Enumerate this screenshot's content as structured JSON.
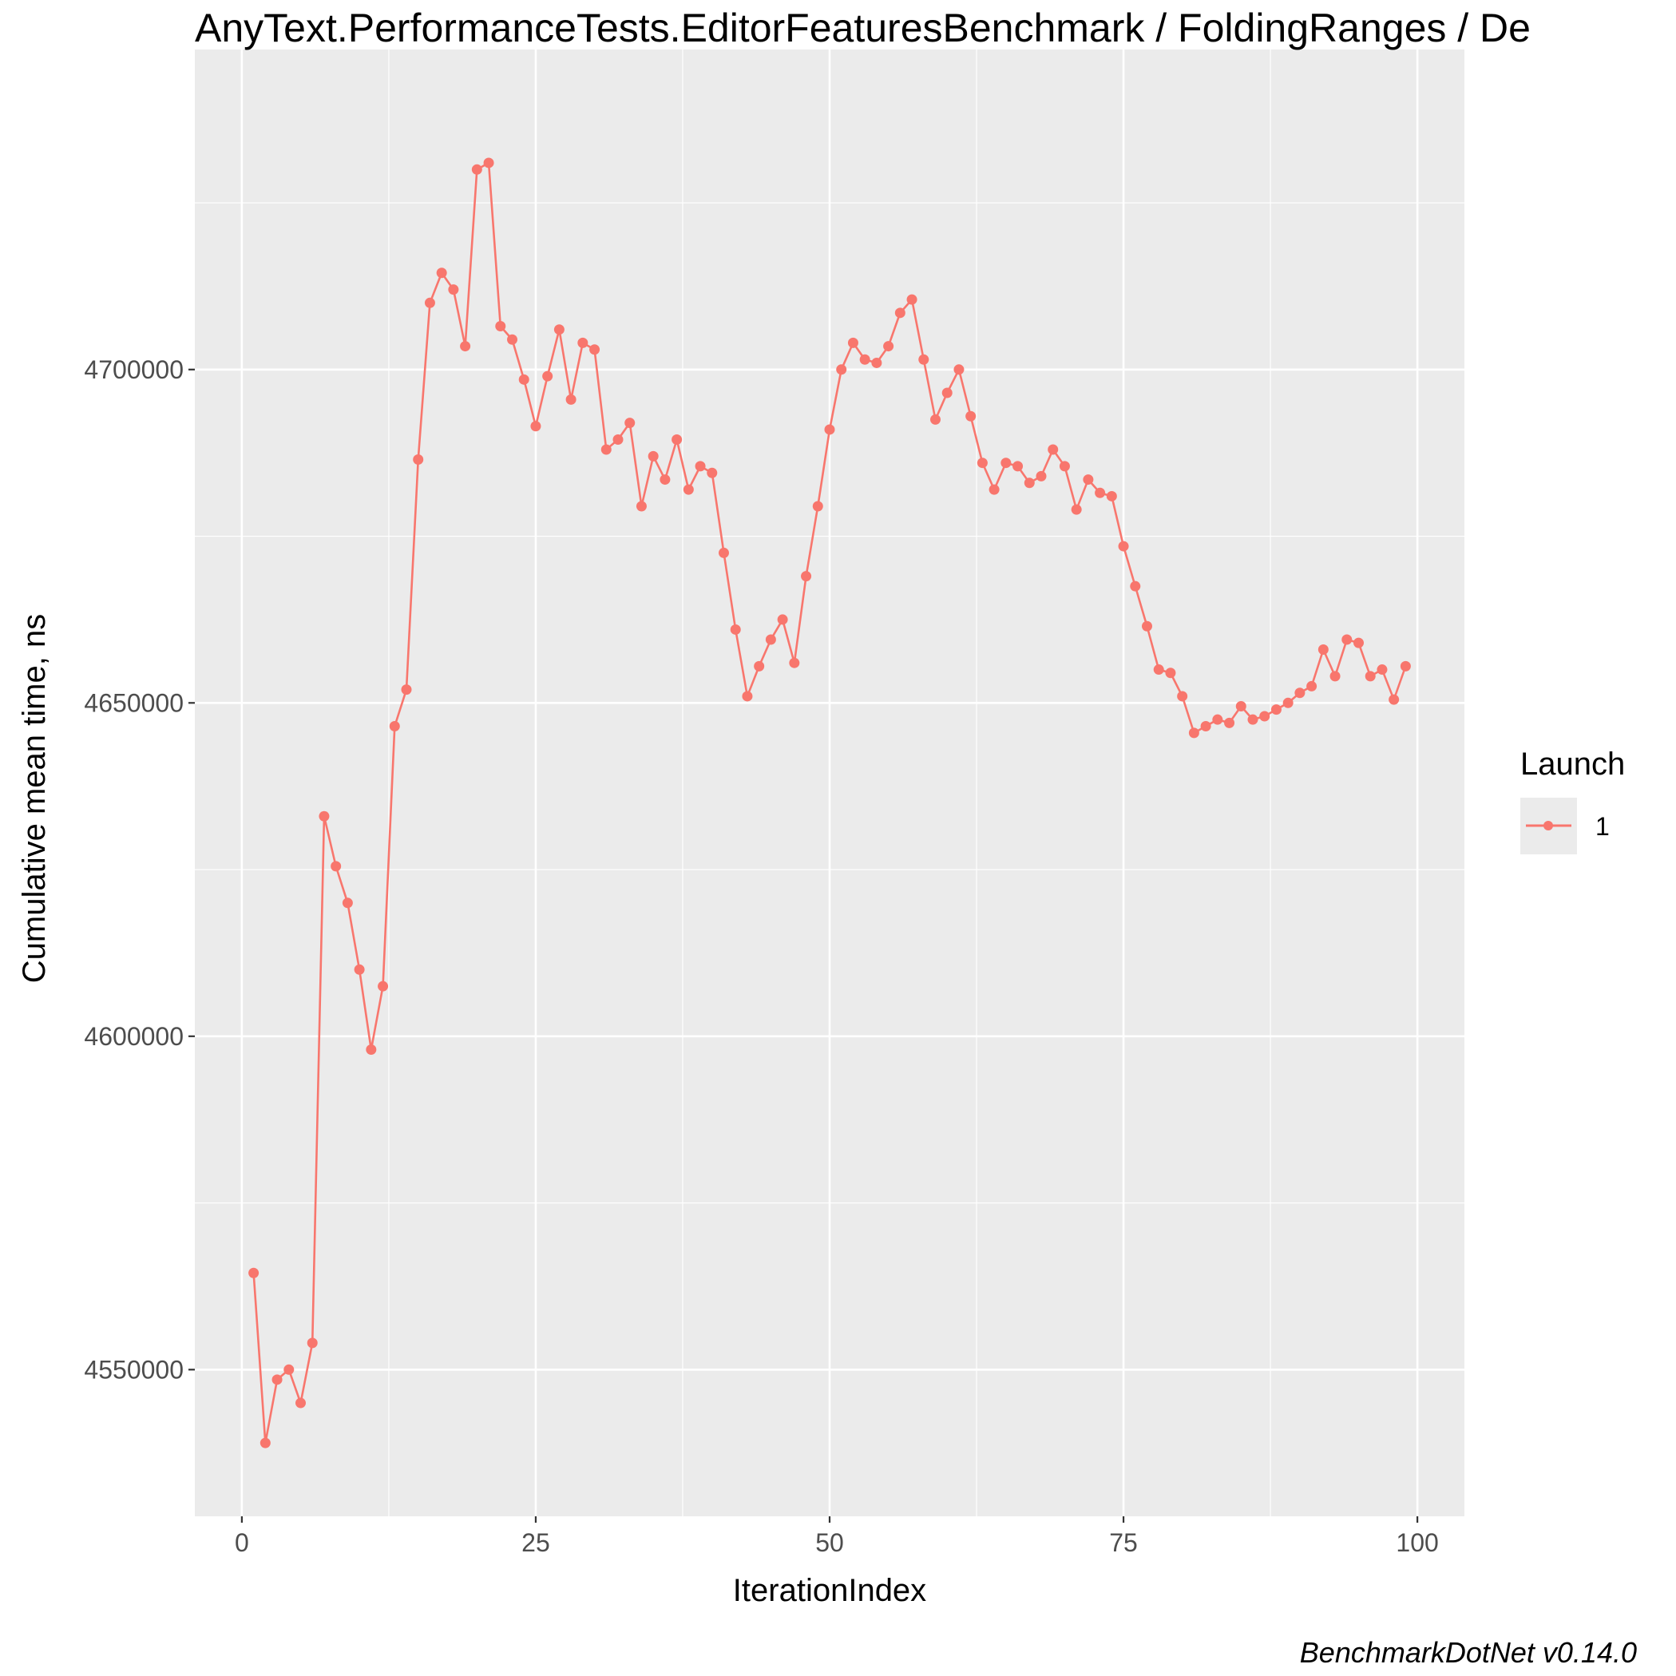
{
  "chart_data": {
    "type": "line",
    "title": "AnyText.PerformanceTests.EditorFeaturesBenchmark / FoldingRanges / De",
    "xlabel": "IterationIndex",
    "ylabel": "Cumulative mean time, ns",
    "caption": "BenchmarkDotNet v0.14.0",
    "xlim": [
      -4,
      104
    ],
    "ylim": [
      4528000,
      4748000
    ],
    "x_ticks": [
      0,
      25,
      50,
      75,
      100
    ],
    "x_tick_labels": [
      "0",
      "25",
      "50",
      "75",
      "100"
    ],
    "y_ticks": [
      4550000,
      4600000,
      4650000,
      4700000
    ],
    "y_tick_labels": [
      "4550000",
      "4600000",
      "4650000",
      "4700000"
    ],
    "y_minor_ticks": [
      4575000,
      4625000,
      4675000,
      4725000
    ],
    "grid": true,
    "legend": {
      "title": "Launch",
      "position": "right",
      "entries": [
        {
          "label": "1",
          "color": "#F8766D"
        }
      ]
    },
    "series": [
      {
        "name": "1",
        "color": "#F8766D",
        "x": [
          1,
          2,
          3,
          4,
          5,
          6,
          7,
          8,
          9,
          10,
          11,
          12,
          13,
          14,
          15,
          16,
          17,
          18,
          19,
          20,
          21,
          22,
          23,
          24,
          25,
          26,
          27,
          28,
          29,
          30,
          31,
          32,
          33,
          34,
          35,
          36,
          37,
          38,
          39,
          40,
          41,
          42,
          43,
          44,
          45,
          46,
          47,
          48,
          49,
          50,
          51,
          52,
          53,
          54,
          55,
          56,
          57,
          58,
          59,
          60,
          61,
          62,
          63,
          64,
          65,
          66,
          67,
          68,
          69,
          70,
          71,
          72,
          73,
          74,
          75,
          76,
          77,
          78,
          79,
          80,
          81,
          82,
          83,
          84,
          85,
          86,
          87,
          88,
          89,
          90,
          91,
          92,
          93,
          94,
          95,
          96,
          97,
          98,
          99
        ],
        "values": [
          4564500,
          4539000,
          4548500,
          4550000,
          4545000,
          4554000,
          4633000,
          4625500,
          4620000,
          4610000,
          4598000,
          4607500,
          4646500,
          4652000,
          4686500,
          4710000,
          4714500,
          4712000,
          4703500,
          4730000,
          4731000,
          4706500,
          4704500,
          4698500,
          4691500,
          4699000,
          4706000,
          4695500,
          4704000,
          4703000,
          4688000,
          4689500,
          4692000,
          4679500,
          4687000,
          4683500,
          4689500,
          4682000,
          4685500,
          4684500,
          4672500,
          4661000,
          4651000,
          4655500,
          4659500,
          4662500,
          4656000,
          4669000,
          4679500,
          4691000,
          4700000,
          4704000,
          4701500,
          4701000,
          4703500,
          4708500,
          4710500,
          4701500,
          4692500,
          4696500,
          4700000,
          4693000,
          4686000,
          4682000,
          4686000,
          4685500,
          4683000,
          4684000,
          4688000,
          4685500,
          4679000,
          4683500,
          4681500,
          4681000,
          4673500,
          4667500,
          4661500,
          4655000,
          4654500,
          4651000,
          4645500,
          4646500,
          4647500,
          4647000,
          4649500,
          4647500,
          4648000,
          4649000,
          4650000,
          4651500,
          4652500,
          4658000,
          4654000,
          4659500,
          4659000,
          4654000,
          4655000,
          4650500,
          4655500
        ]
      }
    ]
  }
}
